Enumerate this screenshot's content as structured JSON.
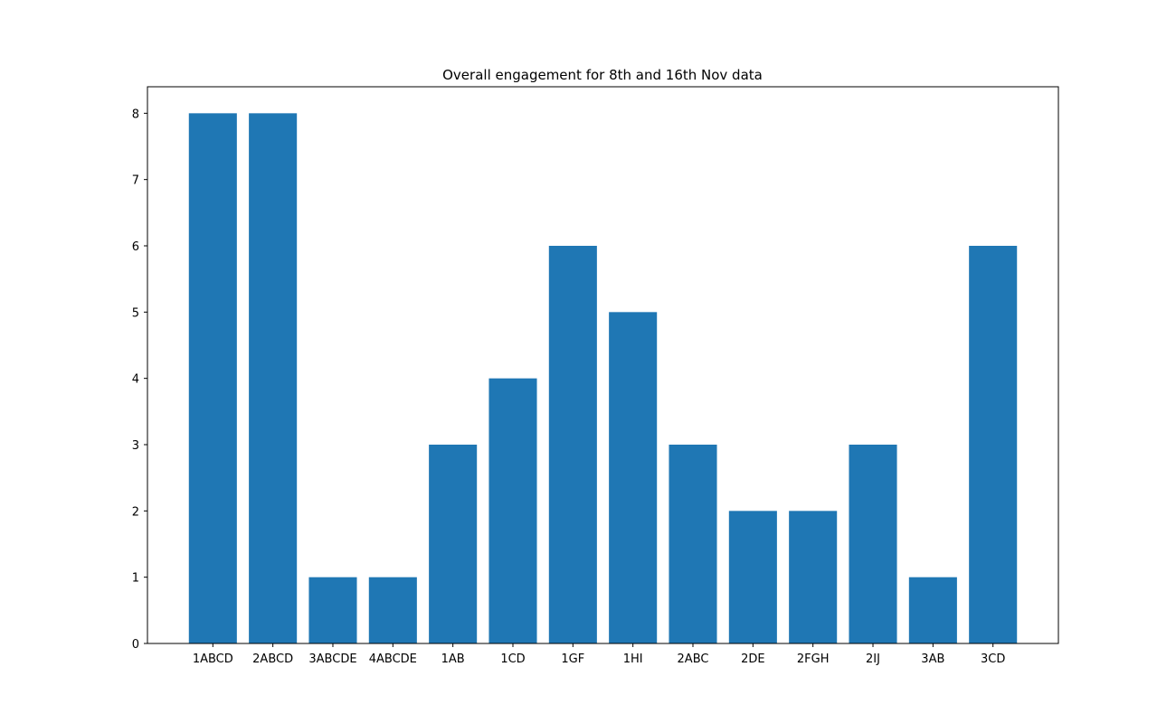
{
  "chart_data": {
    "type": "bar",
    "title": "Overall engagement for 8th and 16th Nov data",
    "xlabel": "",
    "ylabel": "",
    "categories": [
      "1ABCD",
      "2ABCD",
      "3ABCDE",
      "4ABCDE",
      "1AB",
      "1CD",
      "1GF",
      "1HI",
      "2ABC",
      "2DE",
      "2FGH",
      "2IJ",
      "3AB",
      "3CD"
    ],
    "values": [
      8,
      8,
      1,
      1,
      3,
      4,
      6,
      5,
      3,
      2,
      2,
      3,
      1,
      6
    ],
    "ylim": [
      0,
      8.4
    ],
    "yticks": [
      0,
      1,
      2,
      3,
      4,
      5,
      6,
      7,
      8
    ],
    "grid": false,
    "bar_color": "#1f77b4",
    "axis_color": "#000000"
  }
}
